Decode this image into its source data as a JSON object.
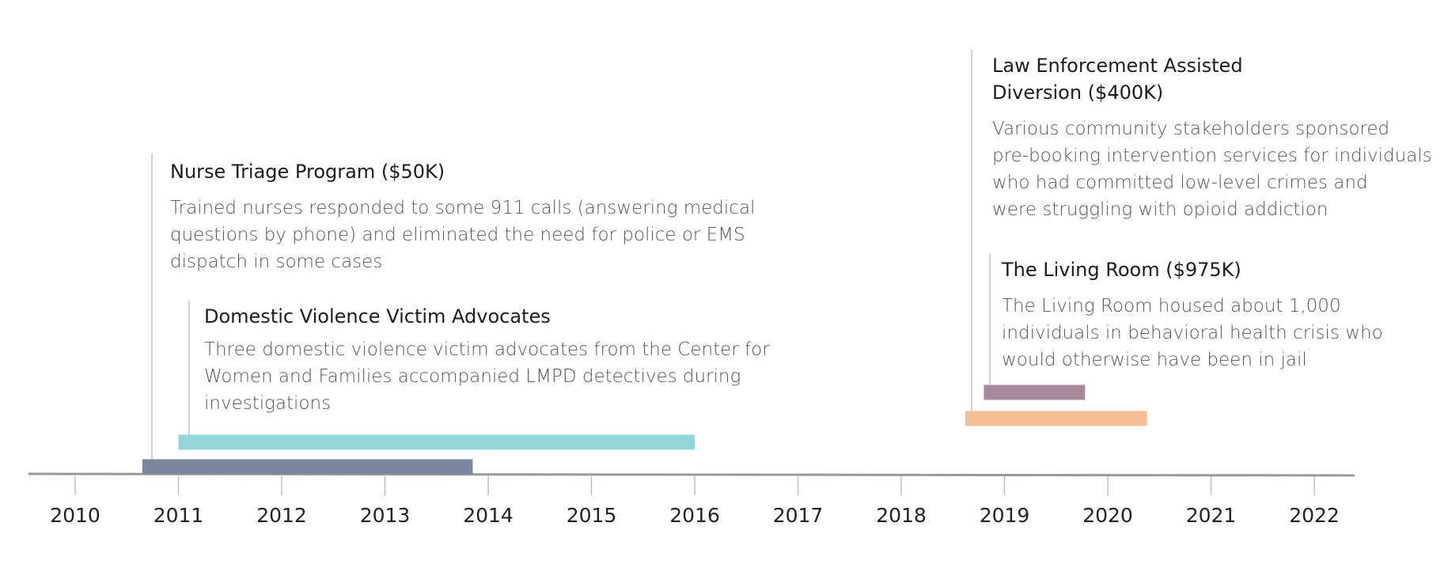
{
  "chart_data": {
    "type": "timeline",
    "xlim": [
      2009.55,
      2022.45
    ],
    "ticks": [
      2010,
      2011,
      2012,
      2013,
      2014,
      2015,
      2016,
      2017,
      2018,
      2019,
      2020,
      2021,
      2022
    ],
    "programs": [
      {
        "id": "nurse-triage",
        "title_lines": [
          "Nurse Triage Program ($50K)"
        ],
        "desc_lines": [
          "Trained nurses responded to some 911 calls (answering medical",
          "questions by phone) and eliminated the need for police or EMS",
          "dispatch in some cases"
        ],
        "start": 2010.65,
        "end": 2013.85,
        "color": "#7a879e"
      },
      {
        "id": "domestic-violence",
        "title_lines": [
          "Domestic Violence Victim Advocates"
        ],
        "desc_lines": [
          "Three domestic violence victim advocates from the Center for",
          "Women and Families accompanied LMPD detectives during",
          "investigations"
        ],
        "start": 2011.0,
        "end": 2016.0,
        "color": "#92d5da"
      },
      {
        "id": "lead",
        "title_lines": [
          "Law Enforcement Assisted",
          "Diversion ($400K)"
        ],
        "desc_lines": [
          "Various community stakeholders sponsored",
          "pre-booking intervention services for individuals",
          "who had committed low-level crimes and",
          "were struggling with opioid addiction"
        ],
        "start": 2018.62,
        "end": 2020.38,
        "color": "#f4bf95"
      },
      {
        "id": "living-room",
        "title_lines": [
          "The Living Room ($975K)"
        ],
        "desc_lines": [
          "The Living Room housed about 1,000",
          "individuals in behavioral health crisis who",
          "would otherwise have been in jail"
        ],
        "start": 2018.8,
        "end": 2019.78,
        "color": "#a68a9b"
      }
    ]
  }
}
